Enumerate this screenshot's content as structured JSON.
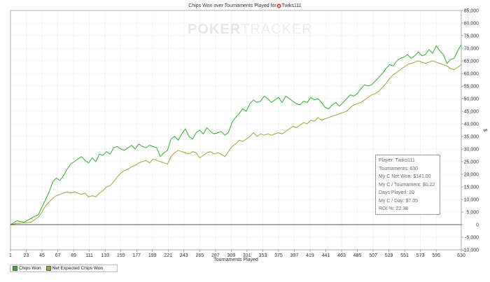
{
  "watermark": {
    "part1": "POKER",
    "part2": "TRACKER"
  },
  "player_icon": "poker-chip-icon",
  "chart_data": {
    "type": "line",
    "title_prefix": "Chips Won over Tournaments Played for",
    "player_name": "Twiks111",
    "xlabel": "Tournaments Played",
    "ylabel": "$",
    "xlim": [
      1,
      630
    ],
    "ylim": [
      -10000,
      85000
    ],
    "x_ticks": [
      1,
      23,
      45,
      67,
      89,
      111,
      133,
      155,
      177,
      199,
      221,
      243,
      265,
      287,
      309,
      331,
      353,
      375,
      397,
      419,
      441,
      463,
      485,
      507,
      529,
      551,
      573,
      595,
      630
    ],
    "y_ticks": [
      -10000,
      -5000,
      0,
      5000,
      10000,
      15000,
      20000,
      25000,
      30000,
      35000,
      40000,
      45000,
      50000,
      55000,
      60000,
      65000,
      70000,
      75000,
      80000,
      85000
    ],
    "y_tick_labels": [
      "-10,000",
      "-5,000",
      "0",
      "5,000",
      "10,000",
      "15,000",
      "20,000",
      "25,000",
      "30,000",
      "35,000",
      "40,000",
      "45,000",
      "50,000",
      "55,000",
      "60,000",
      "65,000",
      "70,000",
      "75,000",
      "80,000",
      "85,000"
    ],
    "grid": true,
    "legend_position": "bottom-left",
    "series": [
      {
        "name": "Chips Won",
        "color": "#3aaa35",
        "x": [
          1,
          10,
          20,
          30,
          40,
          45,
          50,
          55,
          60,
          65,
          70,
          75,
          80,
          85,
          90,
          95,
          100,
          105,
          110,
          115,
          120,
          125,
          130,
          135,
          140,
          145,
          150,
          155,
          160,
          165,
          170,
          175,
          180,
          185,
          190,
          195,
          200,
          205,
          210,
          215,
          220,
          225,
          230,
          235,
          240,
          245,
          250,
          255,
          260,
          265,
          270,
          275,
          280,
          285,
          290,
          295,
          300,
          305,
          310,
          315,
          320,
          325,
          330,
          335,
          340,
          345,
          350,
          355,
          360,
          365,
          370,
          375,
          380,
          385,
          390,
          395,
          400,
          405,
          410,
          415,
          420,
          425,
          430,
          435,
          440,
          445,
          450,
          455,
          460,
          465,
          470,
          475,
          480,
          485,
          490,
          495,
          500,
          505,
          510,
          515,
          520,
          525,
          530,
          535,
          540,
          545,
          550,
          555,
          560,
          565,
          570,
          575,
          580,
          585,
          590,
          595,
          600,
          605,
          610,
          615,
          620,
          625,
          630
        ],
        "values": [
          0,
          1500,
          1000,
          2500,
          4000,
          7000,
          10000,
          13000,
          17000,
          18500,
          17500,
          19500,
          22000,
          24000,
          25000,
          26000,
          27000,
          25500,
          24500,
          26500,
          25000,
          28000,
          27500,
          29000,
          28000,
          30500,
          31000,
          30000,
          29500,
          30500,
          31500,
          30000,
          32000,
          31000,
          30500,
          31500,
          31000,
          30500,
          27000,
          28500,
          29500,
          34000,
          35000,
          33500,
          36000,
          38000,
          35000,
          34000,
          36500,
          37500,
          36000,
          38500,
          37000,
          36000,
          36500,
          37000,
          35500,
          36500,
          40500,
          42500,
          44000,
          46000,
          45000,
          48000,
          49500,
          48500,
          49000,
          51000,
          50000,
          48500,
          49500,
          50500,
          48500,
          51000,
          50000,
          49000,
          48000,
          47500,
          49000,
          48500,
          50500,
          49500,
          50000,
          48500,
          46500,
          46000,
          47500,
          48500,
          47000,
          48500,
          50000,
          51500,
          51000,
          52000,
          54000,
          55500,
          55000,
          55500,
          57000,
          58500,
          60000,
          62000,
          63500,
          63000,
          65000,
          66000,
          66500,
          67500,
          66000,
          67000,
          68500,
          67000,
          67500,
          69500,
          68000,
          71000,
          69000,
          67500,
          64000,
          65500,
          66000,
          69000,
          71500
        ]
      },
      {
        "name": "Net Expected Chips Won",
        "color": "#a8a03a",
        "x": [
          1,
          10,
          20,
          30,
          40,
          45,
          50,
          55,
          60,
          65,
          70,
          75,
          80,
          85,
          90,
          95,
          100,
          105,
          110,
          115,
          120,
          125,
          130,
          135,
          140,
          145,
          150,
          155,
          160,
          165,
          170,
          175,
          180,
          185,
          190,
          195,
          200,
          205,
          210,
          215,
          220,
          225,
          230,
          235,
          240,
          245,
          250,
          255,
          260,
          265,
          270,
          275,
          280,
          285,
          290,
          295,
          300,
          305,
          310,
          315,
          320,
          325,
          330,
          335,
          340,
          345,
          350,
          355,
          360,
          365,
          370,
          375,
          380,
          385,
          390,
          395,
          400,
          405,
          410,
          415,
          420,
          425,
          430,
          435,
          440,
          445,
          450,
          455,
          460,
          465,
          470,
          475,
          480,
          485,
          490,
          495,
          500,
          505,
          510,
          515,
          520,
          525,
          530,
          535,
          540,
          545,
          550,
          555,
          560,
          565,
          570,
          575,
          580,
          585,
          590,
          595,
          600,
          605,
          610,
          615,
          620,
          625,
          630
        ],
        "values": [
          0,
          500,
          700,
          1000,
          3000,
          5000,
          7500,
          9000,
          10500,
          11500,
          12000,
          12500,
          13000,
          12500,
          13000,
          12500,
          12000,
          12500,
          11000,
          11500,
          11000,
          12500,
          13500,
          15000,
          15500,
          17000,
          19000,
          20500,
          21500,
          22000,
          23000,
          23500,
          24500,
          25000,
          25500,
          24500,
          26000,
          25500,
          25000,
          24500,
          24000,
          27000,
          28500,
          29500,
          29000,
          28500,
          28000,
          29000,
          28500,
          26500,
          27500,
          28500,
          29000,
          28000,
          28500,
          28000,
          27000,
          29000,
          31000,
          32000,
          33500,
          33000,
          34000,
          35000,
          36500,
          35000,
          36000,
          35500,
          36000,
          35500,
          36000,
          36500,
          36000,
          37000,
          38000,
          39000,
          38500,
          39500,
          40500,
          40000,
          41500,
          41000,
          42500,
          41500,
          42000,
          42500,
          43000,
          43500,
          44000,
          44500,
          45000,
          46500,
          47500,
          48000,
          48500,
          49500,
          50500,
          51500,
          52000,
          53000,
          54500,
          56000,
          58000,
          59500,
          60500,
          61500,
          62500,
          63500,
          64000,
          64500,
          65000,
          64500,
          64000,
          64500,
          65000,
          64500,
          64000,
          63500,
          63000,
          62000,
          61500,
          62500,
          63500
        ]
      }
    ]
  },
  "stats": [
    "Player: Twiks111",
    "Tournaments: 630",
    "My C Net Won: $141.00",
    "My C / Tournament: $0.22",
    "Days Played: 20",
    "My C / Day: $7.05",
    "ROI %: 22.38"
  ]
}
